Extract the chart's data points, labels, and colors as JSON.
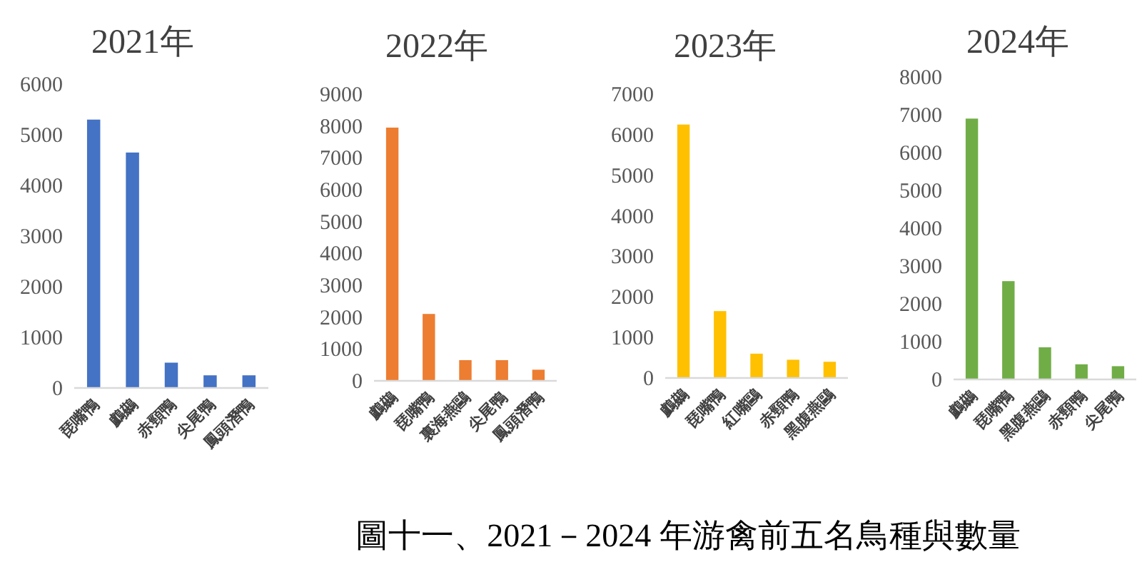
{
  "chart_data": [
    {
      "type": "bar",
      "title": "2021年",
      "categories": [
        "琵嘴鴨",
        "鸕鷀",
        "赤頸鴨",
        "尖尾鴨",
        "鳳頭潛鴨"
      ],
      "values": [
        5300,
        4650,
        500,
        250,
        250
      ],
      "color": "#4472c4",
      "ylim": [
        0,
        6000
      ],
      "yticks": [
        0,
        1000,
        2000,
        3000,
        4000,
        5000,
        6000
      ]
    },
    {
      "type": "bar",
      "title": "2022年",
      "categories": [
        "鸕鷀",
        "琵嘴鴨",
        "裏海燕鷗",
        "尖尾鴨",
        "鳳頭潛鴨"
      ],
      "values": [
        7950,
        2100,
        650,
        650,
        350
      ],
      "color": "#ed7d31",
      "ylim": [
        0,
        9000
      ],
      "yticks": [
        0,
        1000,
        2000,
        3000,
        4000,
        5000,
        6000,
        7000,
        8000,
        9000
      ]
    },
    {
      "type": "bar",
      "title": "2023年",
      "categories": [
        "鸕鷀",
        "琵嘴鴨",
        "紅嘴鷗",
        "赤頸鴨",
        "黑腹燕鷗"
      ],
      "values": [
        6250,
        1650,
        600,
        450,
        400
      ],
      "color": "#ffc000",
      "ylim": [
        0,
        7000
      ],
      "yticks": [
        0,
        1000,
        2000,
        3000,
        4000,
        5000,
        6000,
        7000
      ]
    },
    {
      "type": "bar",
      "title": "2024年",
      "categories": [
        "鸕鷀",
        "琵嘴鴨",
        "黑腹燕鷗",
        "赤頸鴨",
        "尖尾鴨"
      ],
      "values": [
        6900,
        2600,
        850,
        400,
        350
      ],
      "color": "#70ad47",
      "ylim": [
        0,
        8000
      ],
      "yticks": [
        0,
        1000,
        2000,
        3000,
        4000,
        5000,
        6000,
        7000,
        8000
      ],
      "annotations": [
        "圖十一、2021－2024 年游禽前五名鳥種與數量"
      ]
    }
  ]
}
